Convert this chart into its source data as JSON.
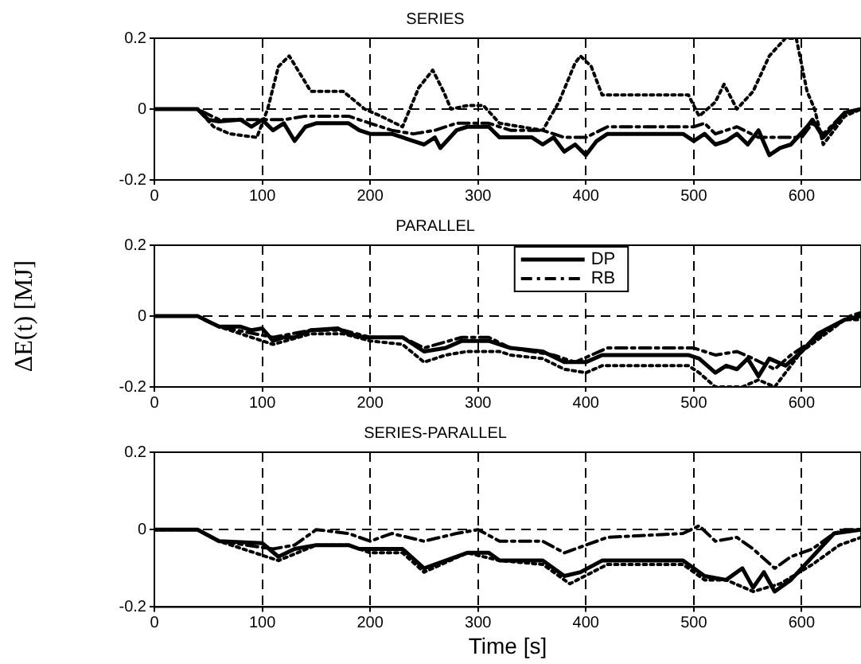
{
  "chart_data": [
    {
      "type": "line",
      "title": "SERIES",
      "xlim": [
        0,
        655
      ],
      "xticks": [
        0,
        100,
        200,
        300,
        400,
        500,
        600
      ],
      "ylim": [
        -0.2,
        0.2
      ],
      "yticks": [
        -0.2,
        0,
        0.2
      ],
      "grid": true,
      "legend": false,
      "marker": "none",
      "series": [
        {
          "color": "#000000",
          "line_style": "dotted",
          "x": [
            0,
            40,
            55,
            70,
            95,
            105,
            115,
            125,
            135,
            145,
            175,
            195,
            210,
            230,
            245,
            258,
            268,
            275,
            290,
            305,
            320,
            360,
            375,
            390,
            395,
            405,
            415,
            495,
            505,
            520,
            528,
            540,
            555,
            570,
            585,
            595,
            605,
            612,
            620,
            640,
            655
          ],
          "values": [
            0,
            0,
            -0.05,
            -0.07,
            -0.08,
            0,
            0.12,
            0.15,
            0.1,
            0.05,
            0.05,
            0,
            -0.02,
            -0.05,
            0.06,
            0.11,
            0.05,
            0,
            0.01,
            0.01,
            -0.04,
            -0.06,
            0.02,
            0.13,
            0.15,
            0.12,
            0.04,
            0.04,
            -0.02,
            0.02,
            0.07,
            0,
            0.05,
            0.15,
            0.2,
            0.2,
            0.05,
            0,
            -0.1,
            -0.02,
            0
          ]
        },
        {
          "color": "#000000",
          "line_style": "solid",
          "x": [
            0,
            40,
            50,
            60,
            80,
            90,
            100,
            110,
            120,
            130,
            140,
            150,
            180,
            190,
            200,
            220,
            240,
            250,
            260,
            265,
            280,
            290,
            310,
            320,
            350,
            360,
            370,
            380,
            390,
            400,
            410,
            420,
            490,
            500,
            510,
            520,
            530,
            540,
            550,
            560,
            570,
            580,
            590,
            605,
            610,
            620,
            640,
            655
          ],
          "values": [
            0,
            0,
            -0.03,
            -0.035,
            -0.03,
            -0.05,
            -0.03,
            -0.06,
            -0.04,
            -0.09,
            -0.05,
            -0.04,
            -0.04,
            -0.06,
            -0.07,
            -0.07,
            -0.09,
            -0.1,
            -0.08,
            -0.11,
            -0.06,
            -0.05,
            -0.05,
            -0.08,
            -0.08,
            -0.1,
            -0.08,
            -0.12,
            -0.1,
            -0.13,
            -0.09,
            -0.07,
            -0.07,
            -0.09,
            -0.07,
            -0.1,
            -0.09,
            -0.07,
            -0.1,
            -0.06,
            -0.13,
            -0.11,
            -0.1,
            -0.05,
            -0.03,
            -0.08,
            -0.01,
            0
          ]
        },
        {
          "color": "#000000",
          "line_style": "dashdot",
          "x": [
            0,
            40,
            60,
            100,
            120,
            140,
            180,
            200,
            220,
            240,
            260,
            280,
            310,
            330,
            360,
            380,
            400,
            420,
            500,
            510,
            520,
            540,
            560,
            580,
            600,
            610,
            620,
            640,
            655
          ],
          "values": [
            0,
            0,
            -0.03,
            -0.03,
            -0.03,
            -0.02,
            -0.02,
            -0.04,
            -0.06,
            -0.07,
            -0.06,
            -0.04,
            -0.04,
            -0.06,
            -0.06,
            -0.08,
            -0.08,
            -0.05,
            -0.05,
            -0.04,
            -0.07,
            -0.05,
            -0.08,
            -0.08,
            -0.08,
            -0.04,
            -0.07,
            -0.01,
            0
          ]
        }
      ]
    },
    {
      "type": "line",
      "title": "PARALLEL",
      "ylabel": "ΔE(t) [MJ]",
      "xlim": [
        0,
        655
      ],
      "xticks": [
        0,
        100,
        200,
        300,
        400,
        500,
        600
      ],
      "ylim": [
        -0.2,
        0.2
      ],
      "yticks": [
        -0.2,
        0,
        0.2
      ],
      "grid": true,
      "legend": "top",
      "marker": "none",
      "series": [
        {
          "color": "#000000",
          "line_style": "dotted",
          "x": [
            0,
            40,
            60,
            110,
            145,
            175,
            200,
            230,
            250,
            270,
            290,
            320,
            330,
            360,
            380,
            400,
            415,
            495,
            505,
            520,
            545,
            560,
            575,
            600,
            640,
            655
          ],
          "values": [
            0,
            0,
            -0.03,
            -0.08,
            -0.05,
            -0.05,
            -0.07,
            -0.08,
            -0.13,
            -0.11,
            -0.1,
            -0.1,
            -0.11,
            -0.12,
            -0.15,
            -0.16,
            -0.14,
            -0.14,
            -0.16,
            -0.2,
            -0.2,
            -0.18,
            -0.2,
            -0.1,
            -0.01,
            -0.01
          ]
        },
        {
          "name": "DP",
          "color": "#000000",
          "line_style": "solid",
          "x": [
            0,
            40,
            50,
            60,
            80,
            90,
            100,
            110,
            120,
            130,
            145,
            170,
            180,
            195,
            230,
            250,
            270,
            285,
            310,
            330,
            360,
            380,
            400,
            415,
            495,
            505,
            520,
            530,
            540,
            550,
            560,
            570,
            585,
            600,
            615,
            640,
            655
          ],
          "values": [
            0,
            0,
            -0.015,
            -0.03,
            -0.03,
            -0.04,
            -0.035,
            -0.07,
            -0.06,
            -0.06,
            -0.04,
            -0.035,
            -0.05,
            -0.06,
            -0.06,
            -0.1,
            -0.09,
            -0.07,
            -0.07,
            -0.09,
            -0.1,
            -0.13,
            -0.13,
            -0.11,
            -0.11,
            -0.12,
            -0.16,
            -0.14,
            -0.15,
            -0.12,
            -0.17,
            -0.12,
            -0.14,
            -0.1,
            -0.05,
            -0.01,
            0
          ]
        },
        {
          "name": "RB",
          "color": "#000000",
          "line_style": "dashdot",
          "x": [
            0,
            40,
            60,
            110,
            145,
            175,
            200,
            230,
            250,
            285,
            310,
            330,
            370,
            390,
            420,
            500,
            520,
            540,
            555,
            575,
            590,
            620,
            645,
            655
          ],
          "values": [
            0,
            0,
            -0.03,
            -0.06,
            -0.04,
            -0.04,
            -0.06,
            -0.06,
            -0.09,
            -0.06,
            -0.06,
            -0.09,
            -0.11,
            -0.13,
            -0.09,
            -0.09,
            -0.11,
            -0.1,
            -0.12,
            -0.15,
            -0.11,
            -0.05,
            0,
            0.01
          ]
        }
      ]
    },
    {
      "type": "line",
      "title": "SERIES-PARALLEL",
      "xlabel": "Time [s]",
      "xlim": [
        0,
        655
      ],
      "xticks": [
        0,
        100,
        200,
        300,
        400,
        500,
        600
      ],
      "ylim": [
        -0.2,
        0.2
      ],
      "yticks": [
        -0.2,
        0,
        0.2
      ],
      "grid": true,
      "legend": false,
      "marker": "none",
      "series": [
        {
          "color": "#000000",
          "line_style": "dotted",
          "x": [
            0,
            40,
            60,
            115,
            150,
            180,
            200,
            230,
            250,
            290,
            320,
            360,
            385,
            420,
            490,
            510,
            530,
            555,
            580,
            610,
            635,
            655
          ],
          "values": [
            0,
            0,
            -0.03,
            -0.08,
            -0.04,
            -0.04,
            -0.06,
            -0.06,
            -0.11,
            -0.06,
            -0.08,
            -0.09,
            -0.14,
            -0.09,
            -0.09,
            -0.13,
            -0.13,
            -0.16,
            -0.14,
            -0.09,
            -0.04,
            -0.02
          ]
        },
        {
          "color": "#000000",
          "line_style": "solid",
          "x": [
            0,
            40,
            60,
            100,
            115,
            130,
            150,
            180,
            190,
            230,
            250,
            270,
            290,
            310,
            320,
            360,
            380,
            395,
            415,
            490,
            510,
            530,
            545,
            555,
            565,
            575,
            590,
            610,
            630,
            655
          ],
          "values": [
            0,
            0,
            -0.03,
            -0.035,
            -0.07,
            -0.05,
            -0.04,
            -0.04,
            -0.05,
            -0.05,
            -0.1,
            -0.08,
            -0.06,
            -0.06,
            -0.08,
            -0.08,
            -0.12,
            -0.11,
            -0.08,
            -0.08,
            -0.12,
            -0.13,
            -0.1,
            -0.15,
            -0.11,
            -0.16,
            -0.13,
            -0.07,
            -0.01,
            0
          ]
        },
        {
          "color": "#000000",
          "line_style": "dashdot",
          "x": [
            0,
            40,
            60,
            110,
            130,
            150,
            180,
            200,
            220,
            250,
            280,
            300,
            320,
            360,
            380,
            420,
            490,
            505,
            520,
            540,
            555,
            575,
            590,
            610,
            630,
            640,
            655
          ],
          "values": [
            0,
            0,
            -0.03,
            -0.05,
            -0.04,
            0,
            -0.01,
            -0.03,
            -0.01,
            -0.03,
            -0.01,
            0,
            -0.03,
            -0.03,
            -0.06,
            -0.02,
            -0.01,
            0.01,
            -0.03,
            -0.02,
            -0.05,
            -0.1,
            -0.07,
            -0.05,
            -0.01,
            0,
            0
          ]
        }
      ]
    }
  ]
}
